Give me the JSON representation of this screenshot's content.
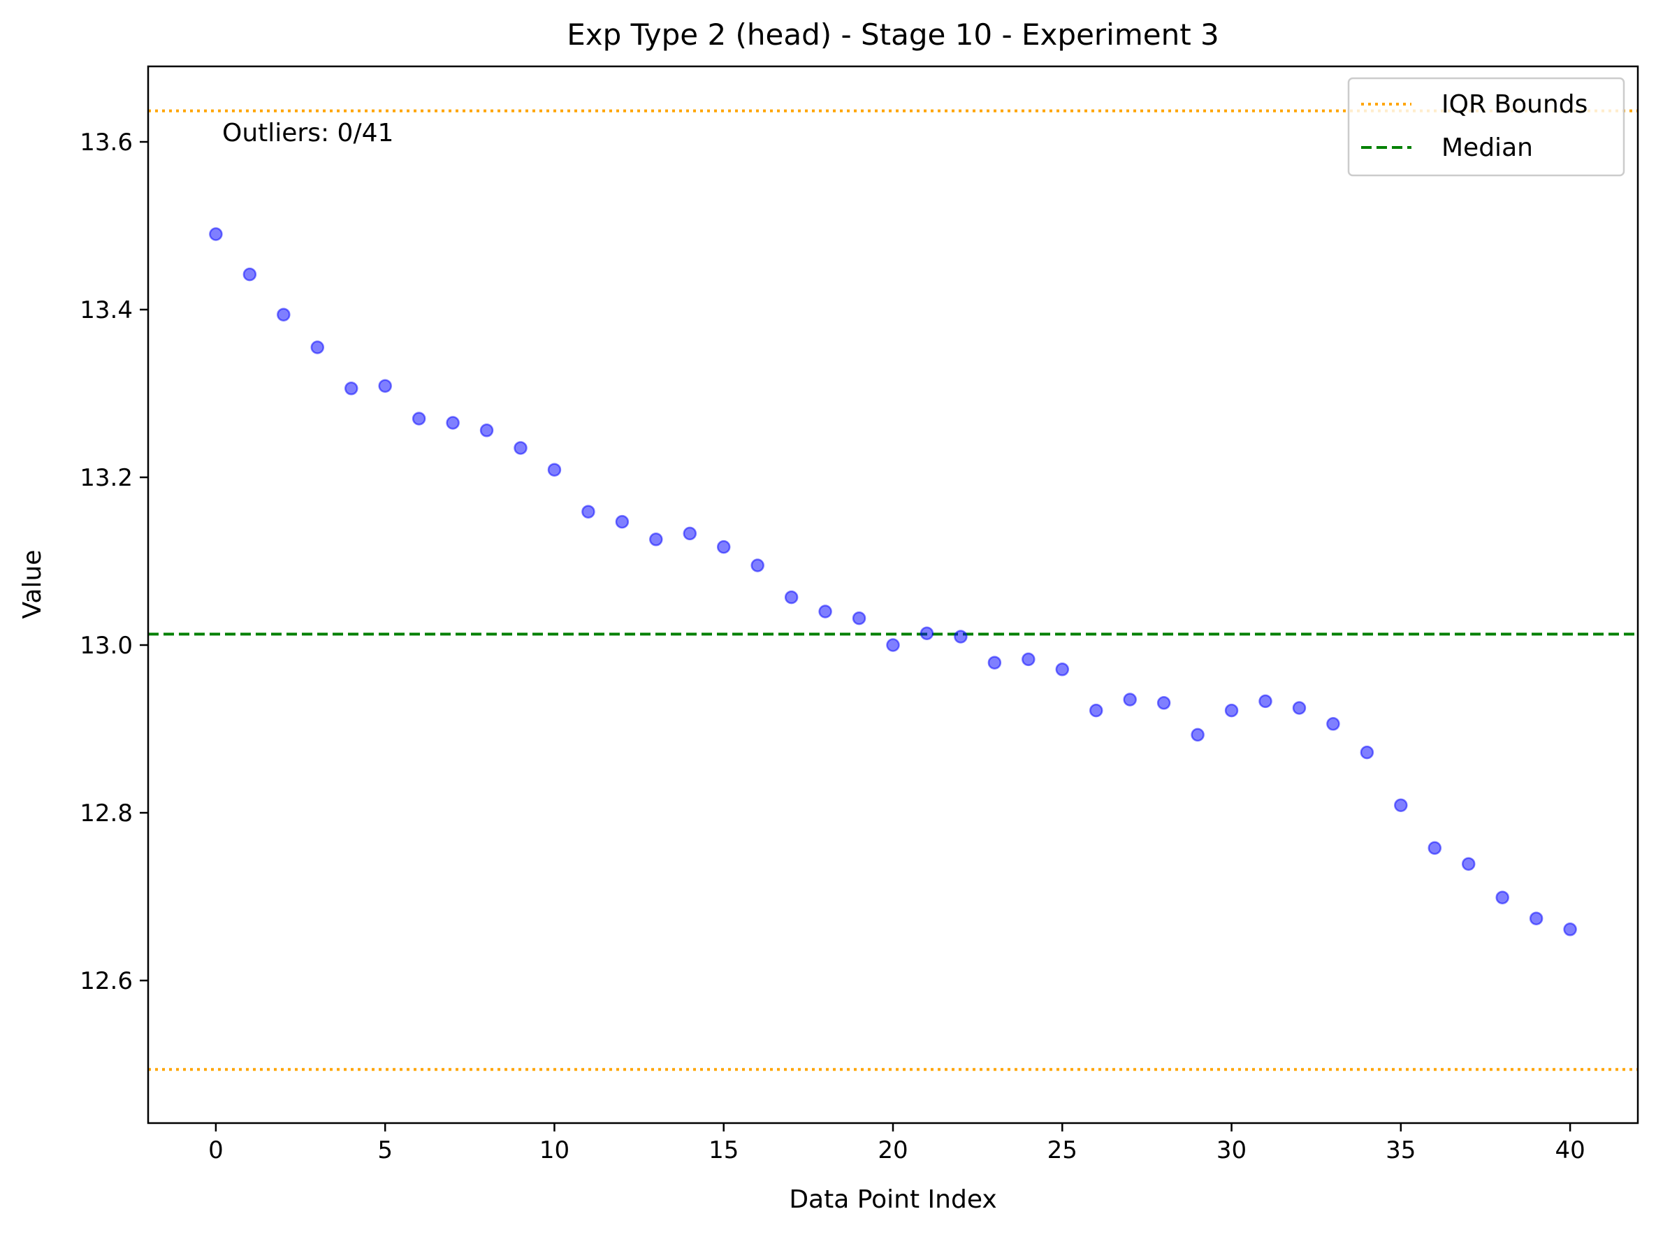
{
  "chart_data": {
    "type": "scatter",
    "title": "Exp Type 2 (head) - Stage 10 - Experiment 3",
    "xlabel": "Data Point Index",
    "ylabel": "Value",
    "xlim": [
      -2,
      42
    ],
    "ylim": [
      12.43,
      13.69
    ],
    "xticks": [
      0,
      5,
      10,
      15,
      20,
      25,
      30,
      35,
      40
    ],
    "yticks": [
      12.6,
      12.8,
      13.0,
      13.2,
      13.4,
      13.6
    ],
    "grid": false,
    "annotation": "Outliers: 0/41",
    "legend": {
      "position": "top-right",
      "entries": [
        {
          "label": "IQR Bounds",
          "style": "dotted",
          "color": "#ffa500"
        },
        {
          "label": "Median",
          "style": "dashed",
          "color": "#008000"
        }
      ]
    },
    "reference_lines": {
      "median": 13.013,
      "iqr_upper": 13.637,
      "iqr_lower": 12.494
    },
    "series": [
      {
        "color": "#0000ff",
        "x": [
          0,
          1,
          2,
          3,
          4,
          5,
          6,
          7,
          8,
          9,
          10,
          11,
          12,
          13,
          14,
          15,
          16,
          17,
          18,
          19,
          20,
          21,
          22,
          23,
          24,
          25,
          26,
          27,
          28,
          29,
          30,
          31,
          32,
          33,
          34,
          35,
          36,
          37,
          38,
          39,
          40
        ],
        "y": [
          13.49,
          13.442,
          13.394,
          13.355,
          13.306,
          13.309,
          13.27,
          13.265,
          13.256,
          13.235,
          13.209,
          13.159,
          13.147,
          13.126,
          13.133,
          13.117,
          13.095,
          13.057,
          13.04,
          13.032,
          13.0,
          13.014,
          13.01,
          12.979,
          12.983,
          12.971,
          12.922,
          12.935,
          12.931,
          12.893,
          12.922,
          12.933,
          12.925,
          12.906,
          12.872,
          12.809,
          12.758,
          12.739,
          12.699,
          12.674,
          12.661
        ]
      }
    ]
  }
}
